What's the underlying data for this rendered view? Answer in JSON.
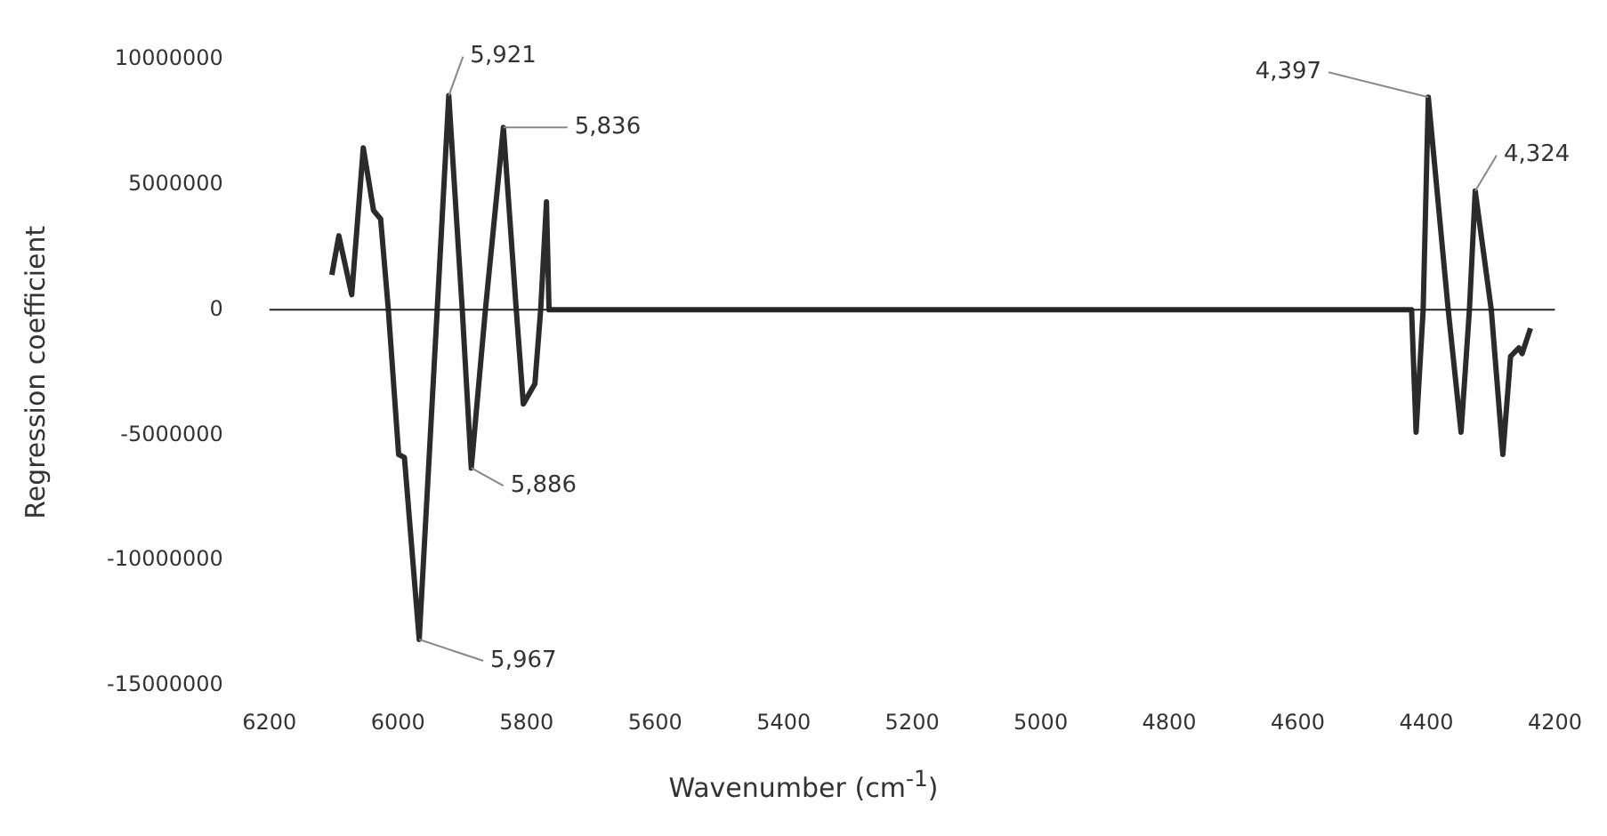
{
  "chart_data": {
    "type": "line",
    "xlabel": "Wavenumber (cm$^{-1}$)",
    "ylabel": "Regression coefficient",
    "x": [
      6103,
      6092,
      6072,
      6054,
      6038,
      6027,
      6015,
      5999,
      5990,
      5967,
      5939,
      5921,
      5900,
      5886,
      5864,
      5836,
      5816,
      5805,
      5787,
      5778,
      5769,
      5765,
      4423,
      4416,
      4405,
      4397,
      4366,
      4346,
      4333,
      4324,
      4299,
      4281,
      4269,
      4256,
      4251,
      4238
    ],
    "series": [
      {
        "color": "#2b2b2b",
        "values": [
          1390000,
          2950000,
          600000,
          6460000,
          3960000,
          3620000,
          0,
          -5770000,
          -5890000,
          -13150000,
          0,
          8540000,
          0,
          -6310000,
          0,
          7270000,
          0,
          -3760000,
          -2950000,
          0,
          4300000,
          0,
          0,
          -4880000,
          0,
          8480000,
          0,
          -4880000,
          0,
          4740000,
          0,
          -5770000,
          -1860000,
          -1520000,
          -1750000,
          -740000
        ]
      }
    ],
    "xlim": [
      6200,
      4200
    ],
    "xticks": [
      6200,
      6000,
      5800,
      5600,
      5400,
      5200,
      5000,
      4800,
      4600,
      4400,
      4200
    ],
    "ylim": [
      -15000000,
      10000000
    ],
    "yticks": [
      -15000000,
      -10000000,
      -5000000,
      0,
      5000000,
      10000000
    ],
    "grid": false,
    "ref_lines": [
      {
        "axis": "y",
        "value": 0,
        "color": "#222222"
      }
    ],
    "legend": false,
    "marker": "none",
    "line_style": "solid",
    "annotations": [
      {
        "text": "5,921",
        "x": 5921,
        "y": 8540000
      },
      {
        "text": "5,836",
        "x": 5836,
        "y": 7270000
      },
      {
        "text": "5,886",
        "x": 5886,
        "y": -6310000
      },
      {
        "text": "5,967",
        "x": 5967,
        "y": -13150000
      },
      {
        "text": "4,397",
        "x": 4397,
        "y": 8480000
      },
      {
        "text": "4,324",
        "x": 4324,
        "y": 4740000
      }
    ]
  }
}
